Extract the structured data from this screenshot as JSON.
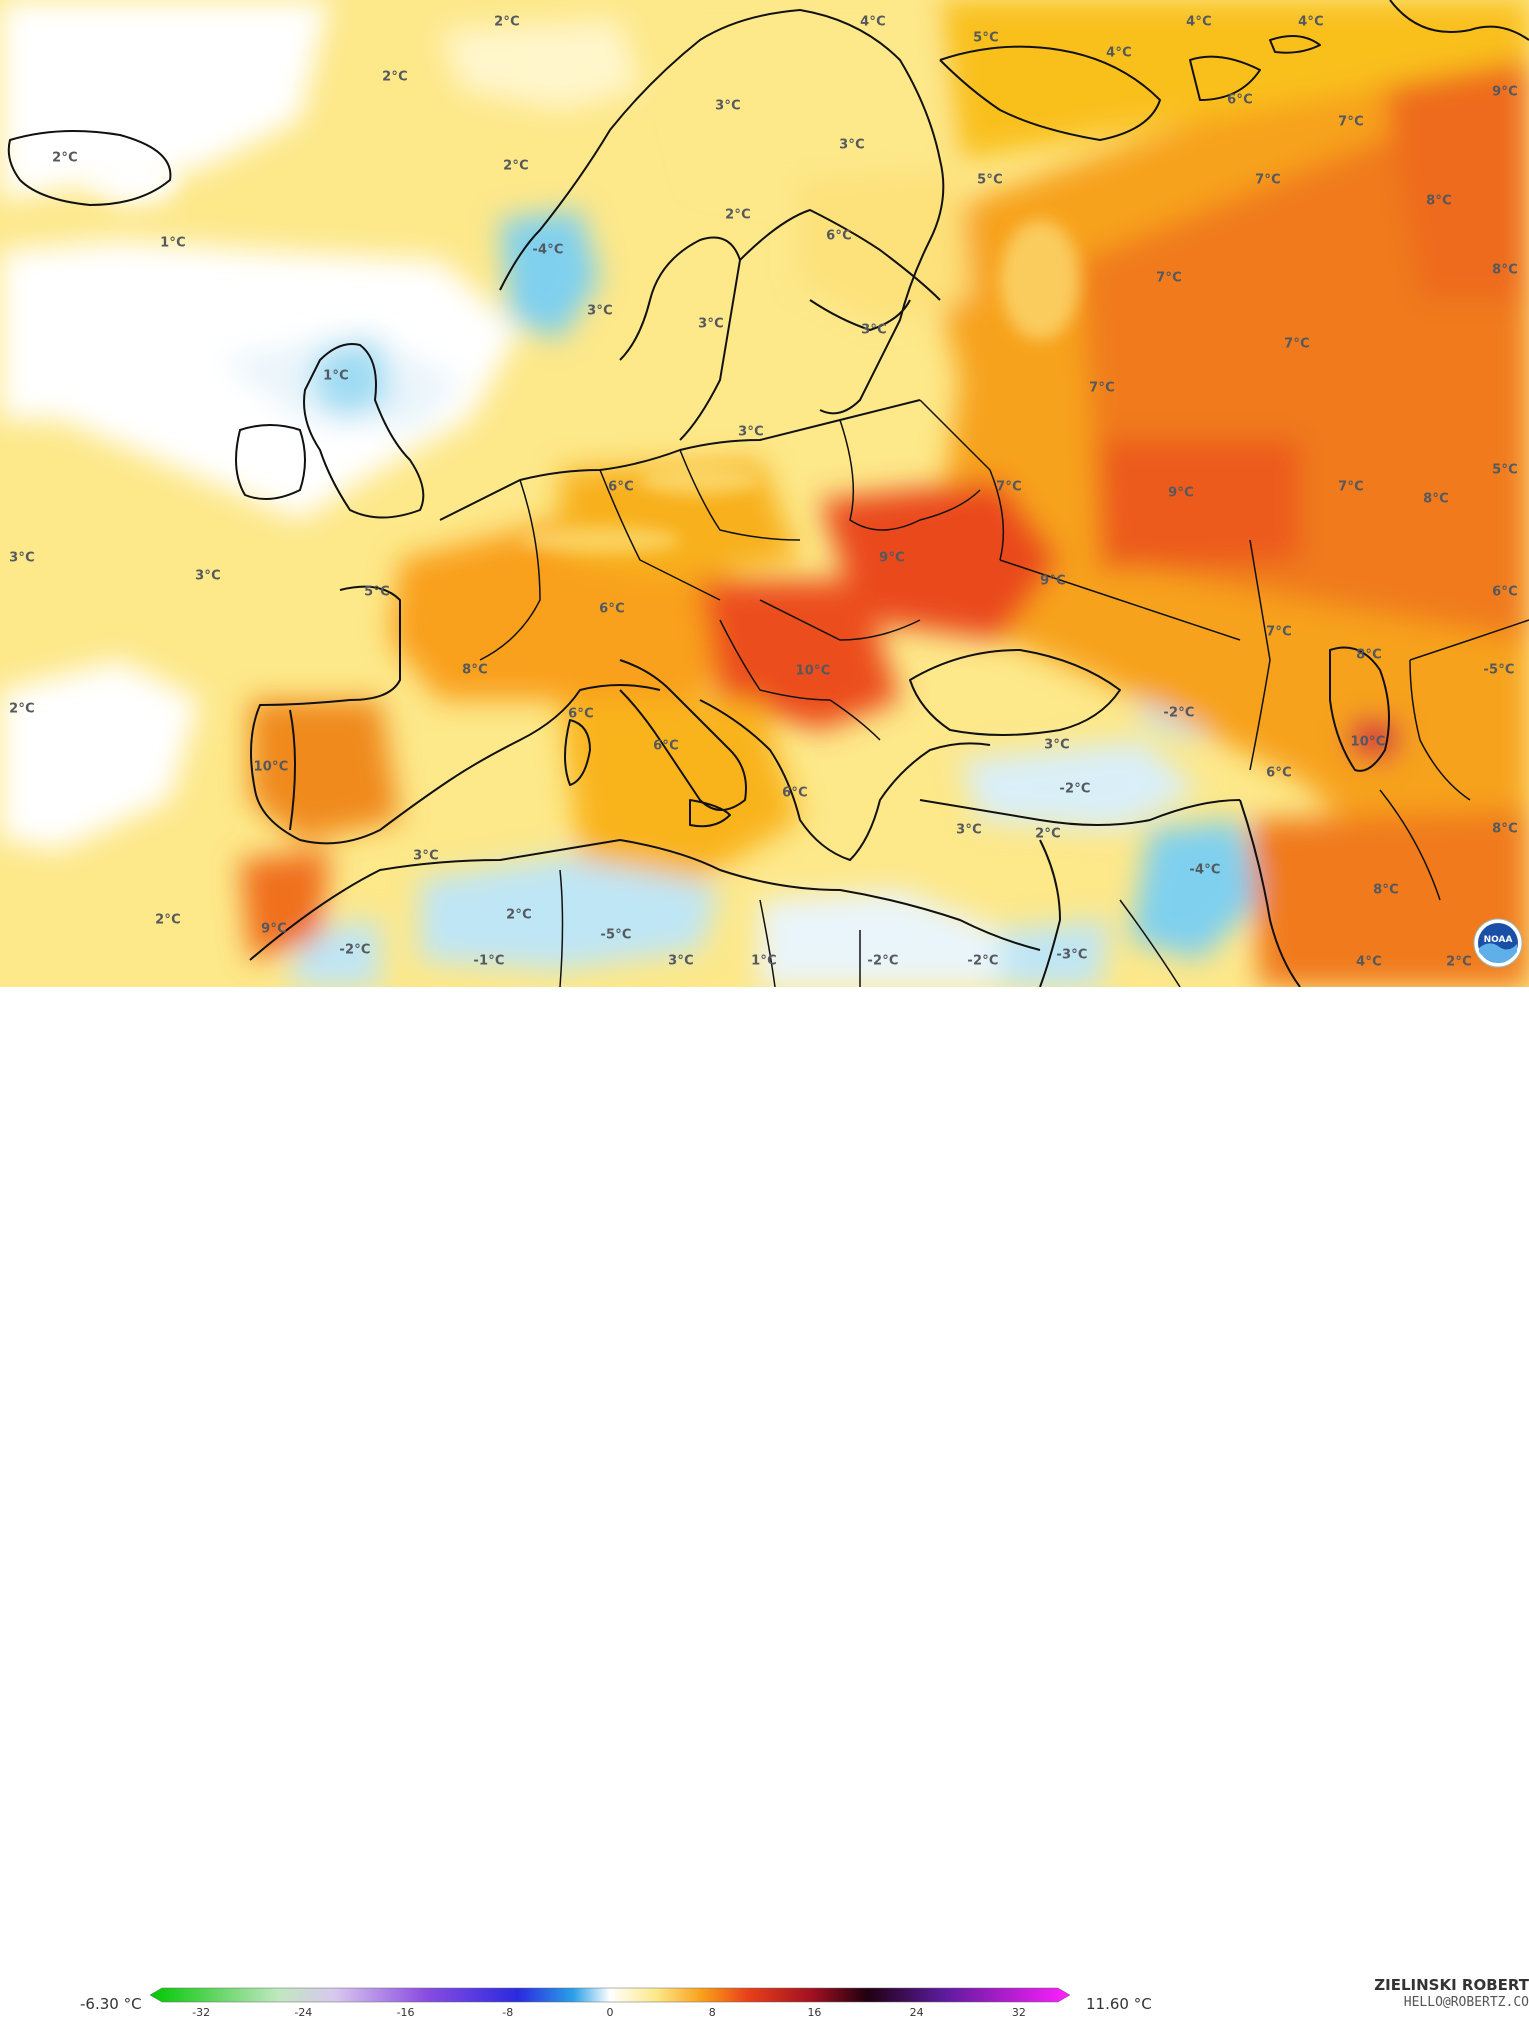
{
  "map": {
    "temperature_labels": [
      {
        "text": "2°C"
      },
      {
        "text": "2°C"
      },
      {
        "text": "2°C"
      },
      {
        "text": "2°C"
      },
      {
        "text": "1°C"
      },
      {
        "text": "1°C"
      },
      {
        "text": "3°C"
      },
      {
        "text": "3°C"
      },
      {
        "text": "2°C"
      },
      {
        "text": "5°C"
      },
      {
        "text": "8°C"
      },
      {
        "text": "10°C"
      },
      {
        "text": "9°C"
      },
      {
        "text": "2°C"
      },
      {
        "text": "3°C"
      },
      {
        "text": "-2°C"
      },
      {
        "text": "-1°C"
      },
      {
        "text": "2°C"
      },
      {
        "text": "-5°C"
      },
      {
        "text": "3°C"
      },
      {
        "text": "1°C"
      },
      {
        "text": "6°C"
      },
      {
        "text": "6°C"
      },
      {
        "text": "6°C"
      },
      {
        "text": "6°C"
      },
      {
        "text": "6°C"
      },
      {
        "text": "10°C"
      },
      {
        "text": "3°C"
      },
      {
        "text": "3°C"
      },
      {
        "text": "2°C"
      },
      {
        "text": "-2°C"
      },
      {
        "text": "-2°C"
      },
      {
        "text": "-2°C"
      },
      {
        "text": "-2°C"
      },
      {
        "text": "-3°C"
      },
      {
        "text": "-4°C"
      },
      {
        "text": "3°C"
      },
      {
        "text": "-4°C"
      },
      {
        "text": "3°C"
      },
      {
        "text": "3°C"
      },
      {
        "text": "2°C"
      },
      {
        "text": "3°C"
      },
      {
        "text": "3°C"
      },
      {
        "text": "4°C"
      },
      {
        "text": "5°C"
      },
      {
        "text": "3°C"
      },
      {
        "text": "6°C"
      },
      {
        "text": "4°C"
      },
      {
        "text": "5°C"
      },
      {
        "text": "4°C"
      },
      {
        "text": "4°C"
      },
      {
        "text": "6°C"
      },
      {
        "text": "9°C"
      },
      {
        "text": "7°C"
      },
      {
        "text": "7°C"
      },
      {
        "text": "8°C"
      },
      {
        "text": "8°C"
      },
      {
        "text": "7°C"
      },
      {
        "text": "7°C"
      },
      {
        "text": "7°C"
      },
      {
        "text": "7°C"
      },
      {
        "text": "9°C"
      },
      {
        "text": "9°C"
      },
      {
        "text": "9°C"
      },
      {
        "text": "7°C"
      },
      {
        "text": "8°C"
      },
      {
        "text": "5°C"
      },
      {
        "text": "6°C"
      },
      {
        "text": "7°C"
      },
      {
        "text": "8°C"
      },
      {
        "text": "-5°C"
      },
      {
        "text": "10°C"
      },
      {
        "text": "6°C"
      },
      {
        "text": "8°C"
      },
      {
        "text": "8°C"
      },
      {
        "text": "4°C"
      },
      {
        "text": "2°C"
      }
    ]
  },
  "colorbar": {
    "min_label": "-6.30 °C",
    "max_label": "11.60 °C",
    "ticks": [
      "-32",
      "-24",
      "-16",
      "-8",
      "0",
      "8",
      "16",
      "24",
      "32"
    ]
  },
  "credit": {
    "name": "ZIELINSKI ROBERT",
    "email": "HELLO@ROBERTZ.CO"
  },
  "logo": {
    "icon": "noaa-logo",
    "text": "NOAA"
  },
  "colors": {
    "very_warm": "#e8401a",
    "warm": "#f07a1a",
    "mild": "#f9b21a",
    "cool": "#fde88a",
    "neutral": "#ffffff",
    "cold": "#bfe6f5",
    "colder": "#7fd0ef",
    "coastline": "#111111"
  }
}
